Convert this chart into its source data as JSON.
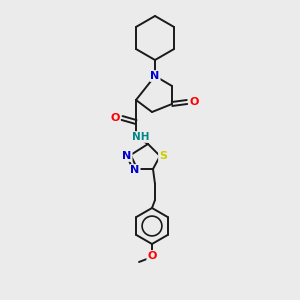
{
  "bg_color": "#ebebeb",
  "bond_color": "#1a1a1a",
  "colors": {
    "N": "#0000cc",
    "O": "#ff0000",
    "S": "#cccc00",
    "C": "#1a1a1a",
    "H": "#008888"
  }
}
